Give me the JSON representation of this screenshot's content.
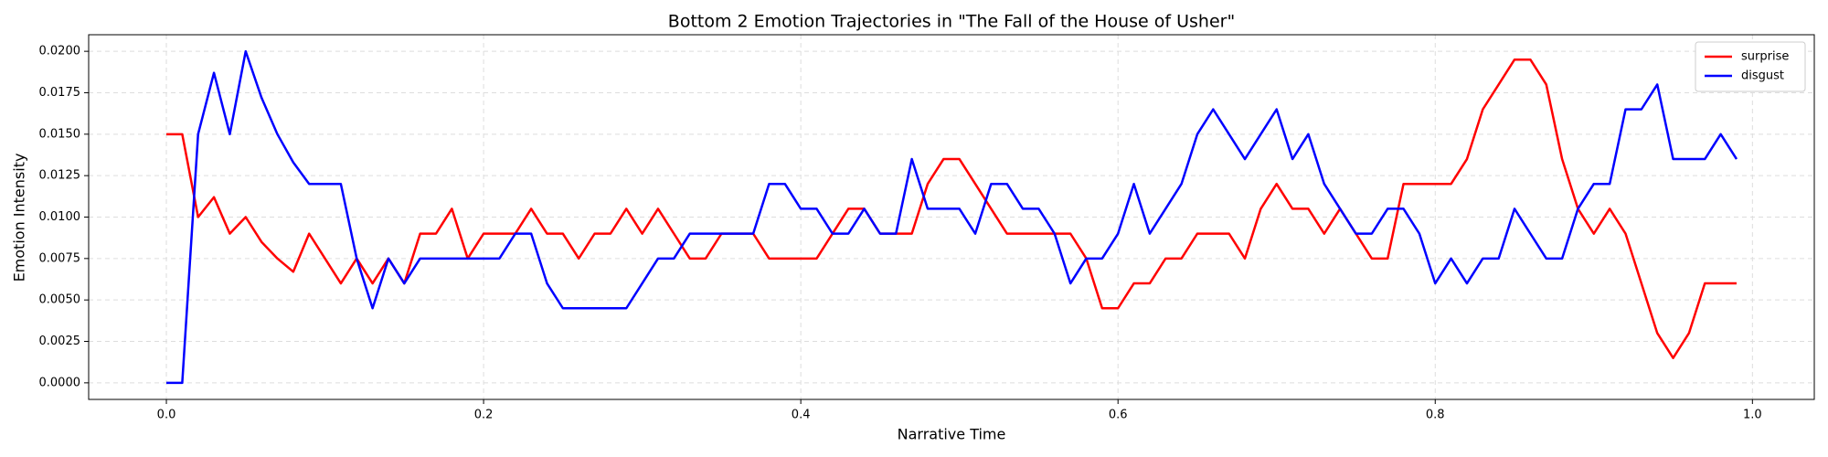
{
  "chart_data": {
    "type": "line",
    "title": "Bottom 2 Emotion Trajectories in \"The Fall of the House of Usher\"",
    "xlabel": "Narrative Time",
    "ylabel": "Emotion Intensity",
    "x": [
      0,
      0.01,
      0.02,
      0.03,
      0.04,
      0.05,
      0.06,
      0.07,
      0.08,
      0.09,
      0.1,
      0.11,
      0.12,
      0.13,
      0.14,
      0.15,
      0.16,
      0.17,
      0.18,
      0.19,
      0.2,
      0.21,
      0.22,
      0.23,
      0.24,
      0.25,
      0.26,
      0.27,
      0.28,
      0.29,
      0.3,
      0.31,
      0.32,
      0.33,
      0.34,
      0.35,
      0.36,
      0.37,
      0.38,
      0.39,
      0.4,
      0.41,
      0.42,
      0.43,
      0.44,
      0.45,
      0.46,
      0.47,
      0.48,
      0.49,
      0.5,
      0.51,
      0.52,
      0.53,
      0.54,
      0.55,
      0.56,
      0.57,
      0.58,
      0.59,
      0.6,
      0.61,
      0.62,
      0.63,
      0.64,
      0.65,
      0.66,
      0.67,
      0.68,
      0.69,
      0.7,
      0.71,
      0.72,
      0.73,
      0.74,
      0.75,
      0.76,
      0.77,
      0.78,
      0.79,
      0.8,
      0.81,
      0.82,
      0.83,
      0.84,
      0.85,
      0.86,
      0.87,
      0.88,
      0.89,
      0.9,
      0.91,
      0.92,
      0.93,
      0.94,
      0.95,
      0.96,
      0.97,
      0.98,
      0.99
    ],
    "series": [
      {
        "name": "surprise",
        "color": "#ff0000",
        "values": [
          0.015,
          0.015,
          0.01,
          0.0112,
          0.009,
          0.01,
          0.0085,
          0.0075,
          0.0067,
          0.009,
          0.0075,
          0.006,
          0.0075,
          0.006,
          0.0075,
          0.006,
          0.009,
          0.009,
          0.0105,
          0.0075,
          0.009,
          0.009,
          0.009,
          0.0105,
          0.009,
          0.009,
          0.0075,
          0.009,
          0.009,
          0.0105,
          0.009,
          0.0105,
          0.009,
          0.0075,
          0.0075,
          0.009,
          0.009,
          0.009,
          0.0075,
          0.0075,
          0.0075,
          0.0075,
          0.009,
          0.0105,
          0.0105,
          0.009,
          0.009,
          0.009,
          0.012,
          0.0135,
          0.0135,
          0.012,
          0.0105,
          0.009,
          0.009,
          0.009,
          0.009,
          0.009,
          0.0075,
          0.0045,
          0.0045,
          0.006,
          0.006,
          0.0075,
          0.0075,
          0.009,
          0.009,
          0.009,
          0.0075,
          0.0105,
          0.012,
          0.0105,
          0.0105,
          0.009,
          0.0105,
          0.009,
          0.0075,
          0.0075,
          0.012,
          0.012,
          0.012,
          0.012,
          0.0135,
          0.0165,
          0.018,
          0.0195,
          0.0195,
          0.018,
          0.0135,
          0.0105,
          0.009,
          0.0105,
          0.009,
          0.006,
          0.003,
          0.0015,
          0.003,
          0.006,
          0.006,
          0.006
        ]
      },
      {
        "name": "disgust",
        "color": "#0000ff",
        "values": [
          0,
          0,
          0.015,
          0.0187,
          0.015,
          0.02,
          0.0172,
          0.015,
          0.0133,
          0.012,
          0.012,
          0.012,
          0.0075,
          0.0045,
          0.0075,
          0.006,
          0.0075,
          0.0075,
          0.0075,
          0.0075,
          0.0075,
          0.0075,
          0.009,
          0.009,
          0.006,
          0.0045,
          0.0045,
          0.0045,
          0.0045,
          0.0045,
          0.006,
          0.0075,
          0.0075,
          0.009,
          0.009,
          0.009,
          0.009,
          0.009,
          0.012,
          0.012,
          0.0105,
          0.0105,
          0.009,
          0.009,
          0.0105,
          0.009,
          0.009,
          0.0135,
          0.0105,
          0.0105,
          0.0105,
          0.009,
          0.012,
          0.012,
          0.0105,
          0.0105,
          0.009,
          0.006,
          0.0075,
          0.0075,
          0.009,
          0.012,
          0.009,
          0.0105,
          0.012,
          0.015,
          0.0165,
          0.015,
          0.0135,
          0.015,
          0.0165,
          0.0135,
          0.015,
          0.012,
          0.0105,
          0.009,
          0.009,
          0.0105,
          0.0105,
          0.009,
          0.006,
          0.0075,
          0.006,
          0.0075,
          0.0075,
          0.0105,
          0.009,
          0.0075,
          0.0075,
          0.0105,
          0.012,
          0.012,
          0.0165,
          0.0165,
          0.018,
          0.0135,
          0.0135,
          0.0135,
          0.015,
          0.0135
        ]
      }
    ],
    "xlim": [
      -0.049,
      1.039
    ],
    "ylim": [
      -0.001,
      0.021
    ],
    "xticks": [
      {
        "value": 0,
        "label": "0.0"
      },
      {
        "value": 0.2,
        "label": "0.2"
      },
      {
        "value": 0.4,
        "label": "0.4"
      },
      {
        "value": 0.6,
        "label": "0.6"
      },
      {
        "value": 0.8,
        "label": "0.8"
      },
      {
        "value": 1,
        "label": "1.0"
      }
    ],
    "yticks": [
      {
        "value": 0,
        "label": "0.0000"
      },
      {
        "value": 0.0025,
        "label": "0.0025"
      },
      {
        "value": 0.005,
        "label": "0.0050"
      },
      {
        "value": 0.0075,
        "label": "0.0075"
      },
      {
        "value": 0.01,
        "label": "0.0100"
      },
      {
        "value": 0.0125,
        "label": "0.0125"
      },
      {
        "value": 0.015,
        "label": "0.0150"
      },
      {
        "value": 0.0175,
        "label": "0.0175"
      },
      {
        "value": 0.02,
        "label": "0.0200"
      }
    ],
    "grid": true,
    "legend": "upper right"
  }
}
